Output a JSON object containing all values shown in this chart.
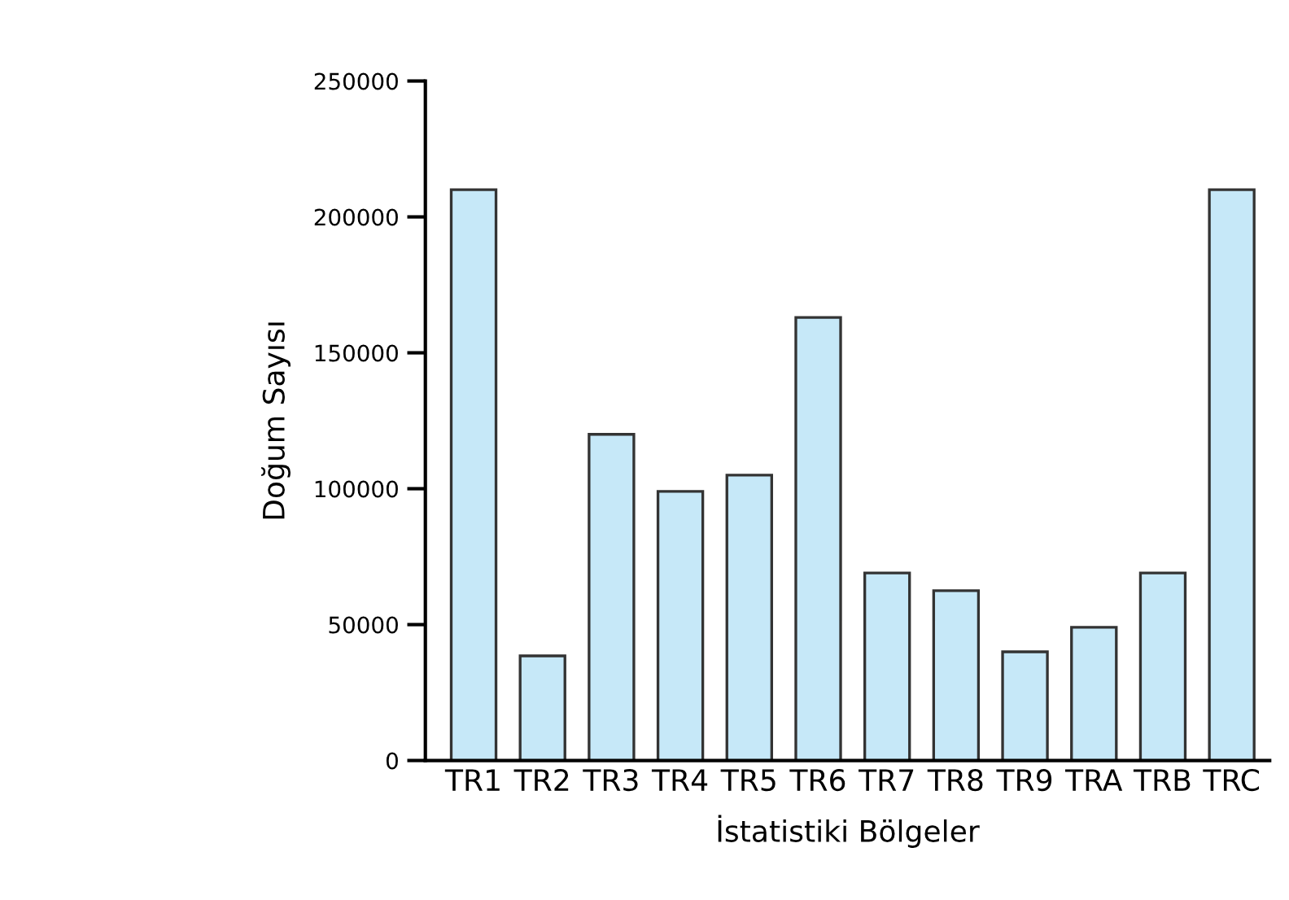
{
  "chart_data": {
    "type": "bar",
    "xlabel": "İstatistiki Bölgeler",
    "ylabel": "Doğum Sayısı",
    "categories": [
      "TR1",
      "TR2",
      "TR3",
      "TR4",
      "TR5",
      "TR6",
      "TR7",
      "TR8",
      "TR9",
      "TRA",
      "TRB",
      "TRC"
    ],
    "values": [
      210000,
      38500,
      120000,
      99000,
      105000,
      163000,
      69000,
      62500,
      40000,
      49000,
      69000,
      210000
    ],
    "color": "#c6e8f8",
    "ylim": [
      0,
      250000
    ],
    "yticks": [
      0,
      50000,
      100000,
      150000,
      200000,
      250000
    ],
    "grid": false,
    "legend": false
  }
}
